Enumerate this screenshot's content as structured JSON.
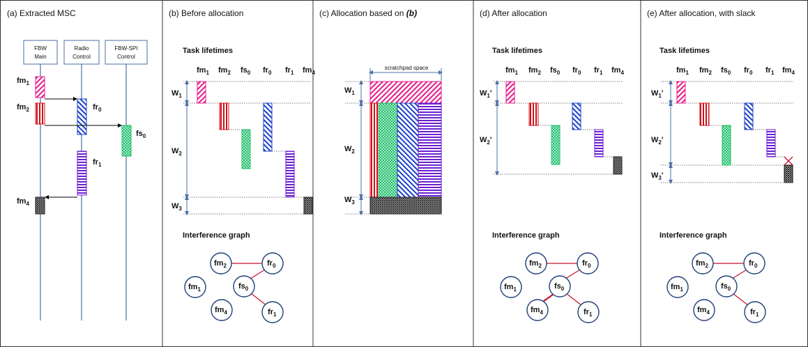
{
  "panels": {
    "a": {
      "title": "(a) Extracted MSC"
    },
    "b": {
      "title": "(b) Before allocation"
    },
    "c": {
      "title_prefix": "(c) Allocation based on ",
      "title_ref": "(b)"
    },
    "d": {
      "title": "(d) After allocation"
    },
    "e": {
      "title": "(e) After allocation, with slack"
    }
  },
  "msc": {
    "lanes": [
      {
        "line1": "FBW",
        "line2": "Main"
      },
      {
        "line1": "Radio",
        "line2": "Control"
      },
      {
        "line1": "FBW-SPI",
        "line2": "Control"
      }
    ]
  },
  "tasks": {
    "fm1": {
      "base": "fm",
      "sub": "1"
    },
    "fm2": {
      "base": "fm",
      "sub": "2"
    },
    "fs0": {
      "base": "fs",
      "sub": "0"
    },
    "fr0": {
      "base": "fr",
      "sub": "0"
    },
    "fr1": {
      "base": "fr",
      "sub": "1"
    },
    "fm4": {
      "base": "fm",
      "sub": "4"
    }
  },
  "windows": {
    "w1": {
      "base": "W",
      "sub": "1"
    },
    "w2": {
      "base": "W",
      "sub": "2"
    },
    "w3": {
      "base": "W",
      "sub": "3"
    },
    "w1p": {
      "base": "W",
      "sub": "1",
      "prime": "'"
    },
    "w2p": {
      "base": "W",
      "sub": "2",
      "prime": "'"
    },
    "w3p": {
      "base": "W",
      "sub": "3",
      "prime": "'"
    }
  },
  "section_labels": {
    "task_lifetimes": "Task lifetimes",
    "interference_graph": "Interference graph",
    "scratchpad": "scratchpad space"
  },
  "colors": {
    "pink": "#e6198a",
    "red": "#d0101a",
    "green": "#1dbf6a",
    "blue": "#1a3fc8",
    "purple": "#6b1fd0",
    "black": "#222222",
    "lane": "#4a6fa5",
    "node": "#1f3f7a",
    "edge": "#c8102e"
  }
}
